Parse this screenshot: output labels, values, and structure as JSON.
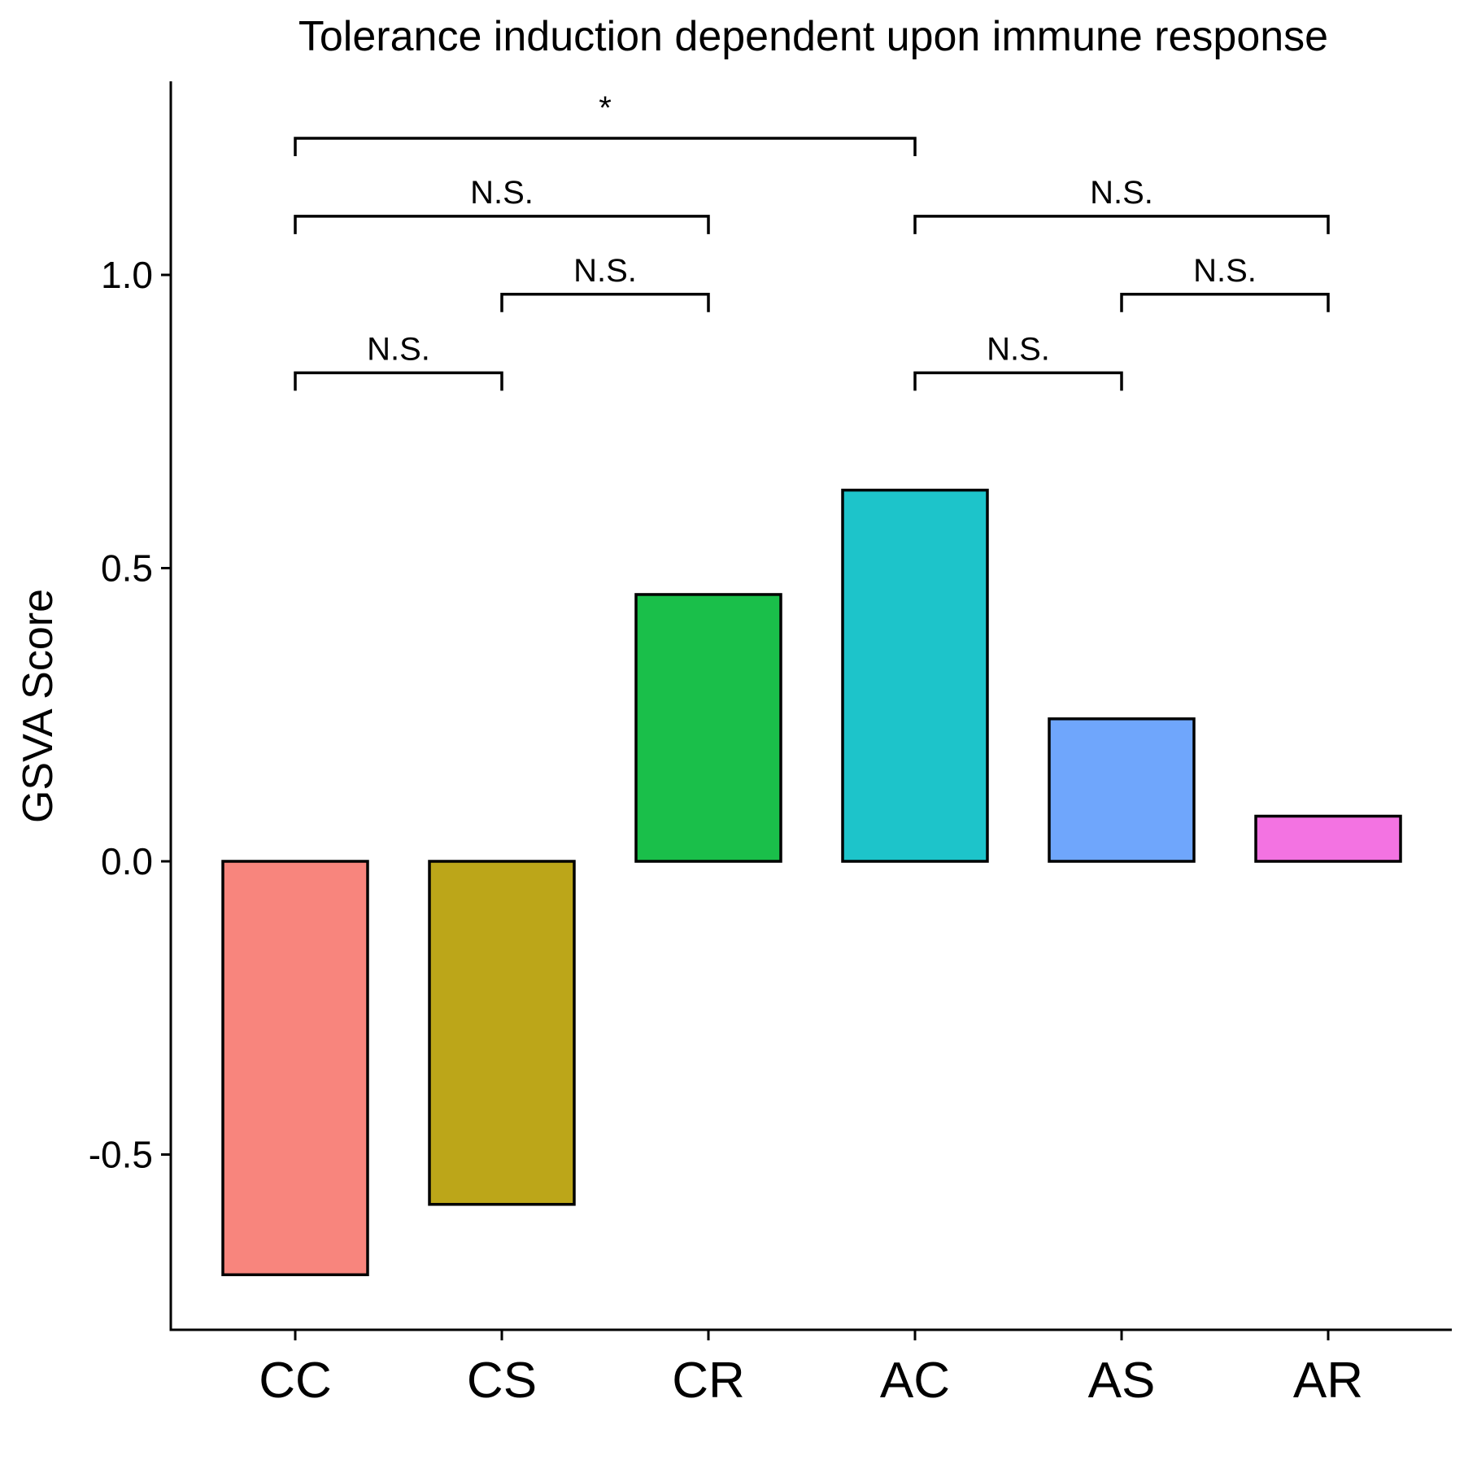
{
  "chart_data": {
    "type": "bar",
    "title": "Tolerance induction dependent upon immune response",
    "xlabel": "",
    "ylabel": "GSVA Score",
    "categories": [
      "CC",
      "CS",
      "CR",
      "AC",
      "AS",
      "AR"
    ],
    "values": [
      -0.705,
      -0.585,
      0.455,
      0.633,
      0.243,
      0.077
    ],
    "colors": [
      "#F8857D",
      "#BCA619",
      "#1ABF4A",
      "#1DC4CA",
      "#6FA6FC",
      "#F373E2"
    ],
    "ylim": [
      -0.8,
      1.3
    ],
    "yticks": [
      -0.5,
      0.0,
      0.5,
      1.0
    ],
    "ytick_labels": [
      "-0.5",
      "0.0",
      "0.5",
      "1.0"
    ],
    "grid": false,
    "legend": "none",
    "comparisons": [
      {
        "from": "CC",
        "to": "CS",
        "y": 0.833,
        "label": "N.S."
      },
      {
        "from": "CS",
        "to": "CR",
        "y": 0.967,
        "label": "N.S."
      },
      {
        "from": "CC",
        "to": "CR",
        "y": 1.1,
        "label": "N.S."
      },
      {
        "from": "CC",
        "to": "AC",
        "y": 1.233,
        "label": "*"
      },
      {
        "from": "AC",
        "to": "AS",
        "y": 0.833,
        "label": "N.S."
      },
      {
        "from": "AS",
        "to": "AR",
        "y": 0.967,
        "label": "N.S."
      },
      {
        "from": "AC",
        "to": "AR",
        "y": 1.1,
        "label": "N.S."
      }
    ]
  }
}
